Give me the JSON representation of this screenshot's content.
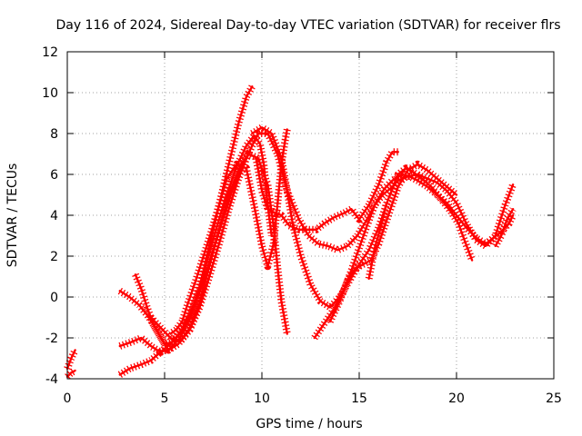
{
  "chart_data": {
    "type": "scatter",
    "title": "Day 116 of 2024, Sidereal Day-to-day VTEC variation (SDTVAR) for receiver flrs",
    "xlabel": "GPS time / hours",
    "ylabel": "SDTVAR / TECUs",
    "xlim": [
      0,
      25
    ],
    "ylim": [
      -4,
      12
    ],
    "xticks": [
      0,
      5,
      10,
      15,
      20,
      25
    ],
    "yticks": [
      -4,
      -2,
      0,
      2,
      4,
      6,
      8,
      10,
      12
    ],
    "xtick_labels": [
      "0",
      "5",
      "10",
      "15",
      "20",
      "25"
    ],
    "ytick_labels": [
      "-4",
      "-2",
      "0",
      "2",
      "4",
      "6",
      "8",
      "10",
      "12"
    ],
    "grid": true,
    "marker": "plus",
    "color": "#ff0000",
    "series": [
      {
        "name": "s1",
        "x": [
          0.0,
          0.2,
          0.4
        ],
        "y": [
          -3.5,
          -3.0,
          -2.6
        ]
      },
      {
        "name": "s2",
        "x": [
          0.0,
          0.2,
          0.4
        ],
        "y": [
          -3.9,
          -3.7,
          -3.6
        ]
      },
      {
        "name": "s3",
        "x": [
          2.7,
          3.2,
          3.8,
          4.3,
          4.9,
          5.4,
          5.9,
          6.3,
          6.9,
          7.4,
          7.9,
          8.4,
          9.0,
          9.4
        ],
        "y": [
          -3.8,
          -3.5,
          -3.3,
          -3.1,
          -2.6,
          -2.2,
          -1.6,
          -0.8,
          0.5,
          2.0,
          3.5,
          5.0,
          6.5,
          7.1
        ]
      },
      {
        "name": "s4",
        "x": [
          2.7,
          3.3,
          3.8,
          4.3,
          4.8,
          5.3,
          5.8,
          6.3,
          6.8,
          7.3,
          7.8,
          8.3,
          8.8,
          9.2,
          9.5
        ],
        "y": [
          -2.4,
          -2.2,
          -2.0,
          -2.4,
          -2.7,
          -2.5,
          -2.0,
          -1.0,
          0.5,
          2.5,
          4.5,
          6.5,
          8.5,
          9.8,
          10.3
        ]
      },
      {
        "name": "s5",
        "x": [
          2.7,
          3.2,
          3.7,
          4.2,
          4.7,
          5.2,
          5.7,
          6.3,
          6.8,
          7.3,
          7.8,
          8.3,
          8.8,
          9.3,
          9.8,
          10.3,
          10.6,
          10.8,
          11.0,
          11.3
        ],
        "y": [
          0.3,
          0.0,
          -0.4,
          -1.0,
          -1.8,
          -2.6,
          -2.3,
          -1.5,
          -0.3,
          1.5,
          3.3,
          5.0,
          6.2,
          7.0,
          6.8,
          5.5,
          3.5,
          1.5,
          -0.2,
          -1.8
        ]
      },
      {
        "name": "s6",
        "x": [
          3.5,
          3.8,
          4.1,
          4.4,
          4.7,
          5.0,
          5.4,
          5.8,
          6.3,
          6.8,
          7.2,
          7.7,
          8.2,
          8.7,
          9.2,
          9.6,
          9.9,
          10.1,
          10.3,
          10.5
        ],
        "y": [
          1.1,
          0.4,
          -0.5,
          -1.3,
          -1.8,
          -2.3,
          -2.2,
          -1.8,
          -1.0,
          0.3,
          1.9,
          3.5,
          5.0,
          6.4,
          7.4,
          7.9,
          7.5,
          6.5,
          4.5,
          3.0
        ]
      },
      {
        "name": "s7",
        "x": [
          4.3,
          4.8,
          5.3,
          5.8,
          6.3,
          6.8,
          7.3,
          7.8,
          8.3,
          8.8,
          9.3,
          9.8,
          10.3,
          10.8,
          11.3,
          11.9,
          12.4,
          12.9,
          13.4,
          13.9,
          14.4,
          14.9,
          15.4,
          15.9,
          16.3,
          16.7,
          17.2,
          17.6,
          18.0,
          18.5,
          19.0,
          19.5,
          20.0,
          20.5,
          21.0,
          21.5,
          21.9,
          22.3,
          22.7,
          22.9
        ],
        "y": [
          -1.0,
          -1.5,
          -2.0,
          -2.2,
          -1.6,
          -0.5,
          1.0,
          2.6,
          4.3,
          5.8,
          7.0,
          8.0,
          8.0,
          7.0,
          5.2,
          3.8,
          3.0,
          2.6,
          2.5,
          2.3,
          2.5,
          3.0,
          3.8,
          4.7,
          5.3,
          5.7,
          6.0,
          5.9,
          5.7,
          5.4,
          5.0,
          4.6,
          4.0,
          3.4,
          2.9,
          2.6,
          2.9,
          3.2,
          3.6,
          4.0
        ]
      },
      {
        "name": "s8",
        "x": [
          9.5,
          10.0,
          10.5,
          11.0,
          11.3,
          11.6,
          12.0,
          12.5,
          13.0,
          13.5,
          14.0,
          14.5,
          15.0,
          15.5,
          16.0,
          16.5,
          17.0,
          17.4,
          17.8,
          18.2,
          18.7,
          19.2,
          19.7,
          20.1,
          20.4,
          20.8
        ],
        "y": [
          8.0,
          8.3,
          8.0,
          6.8,
          5.2,
          3.5,
          2.0,
          0.6,
          -0.2,
          -0.5,
          0.0,
          0.8,
          1.6,
          2.3,
          3.4,
          4.8,
          6.0,
          6.3,
          6.1,
          5.8,
          5.4,
          4.8,
          4.2,
          3.6,
          2.8,
          1.8
        ]
      },
      {
        "name": "s9",
        "x": [
          9.7,
          10.0,
          10.3,
          10.7,
          11.0,
          11.4,
          11.9,
          12.3,
          12.8,
          13.2,
          13.7,
          14.2,
          14.6,
          15.0,
          15.5,
          16.0,
          16.4,
          16.7,
          17.0
        ],
        "y": [
          6.8,
          5.2,
          4.3,
          4.1,
          4.0,
          3.5,
          3.3,
          3.3,
          3.3,
          3.6,
          3.9,
          4.1,
          4.3,
          3.8,
          4.5,
          5.5,
          6.6,
          7.1,
          7.1
        ]
      },
      {
        "name": "s10",
        "x": [
          11.3,
          11.2,
          11.0,
          10.8,
          10.6,
          10.3,
          10.0,
          9.6,
          9.2,
          8.7,
          8.2,
          7.8,
          7.4,
          7.0,
          6.6,
          6.2,
          5.9,
          5.6,
          5.3
        ],
        "y": [
          8.2,
          7.7,
          6.5,
          4.5,
          2.6,
          1.5,
          2.5,
          4.5,
          6.3,
          6.5,
          5.8,
          4.5,
          3.2,
          2.0,
          0.8,
          -0.3,
          -1.2,
          -1.6,
          -1.8
        ]
      },
      {
        "name": "s11",
        "x": [
          12.7,
          13.2,
          13.7,
          14.2,
          14.6,
          15.0,
          15.4,
          15.8,
          16.2,
          16.6,
          17.0,
          17.5,
          18.0,
          18.5,
          19.0,
          19.5,
          20.0,
          20.5,
          21.0,
          21.5,
          22.0,
          22.5,
          22.9
        ],
        "y": [
          -2.0,
          -1.3,
          -0.6,
          0.3,
          1.3,
          2.4,
          3.5,
          4.5,
          5.0,
          5.3,
          5.7,
          5.9,
          6.0,
          5.8,
          5.6,
          5.2,
          4.6,
          3.6,
          2.8,
          2.5,
          3.0,
          4.5,
          5.5
        ]
      },
      {
        "name": "s12",
        "x": [
          13.5,
          14.0,
          14.4,
          14.8,
          15.2,
          15.6,
          16.0,
          16.5,
          17.0,
          17.5,
          18.0,
          18.5,
          19.0,
          19.5,
          20.0
        ],
        "y": [
          -1.2,
          -0.2,
          0.8,
          1.4,
          1.6,
          1.8,
          2.6,
          4.0,
          5.4,
          6.2,
          6.5,
          6.2,
          5.8,
          5.4,
          5.0
        ]
      },
      {
        "name": "s13",
        "x": [
          15.5,
          15.8,
          16.1,
          16.4
        ],
        "y": [
          0.9,
          2.4,
          3.4,
          4.6
        ]
      },
      {
        "name": "s14",
        "x": [
          22.0,
          22.3,
          22.6,
          22.9
        ],
        "y": [
          2.5,
          3.0,
          3.8,
          4.3
        ]
      }
    ]
  }
}
